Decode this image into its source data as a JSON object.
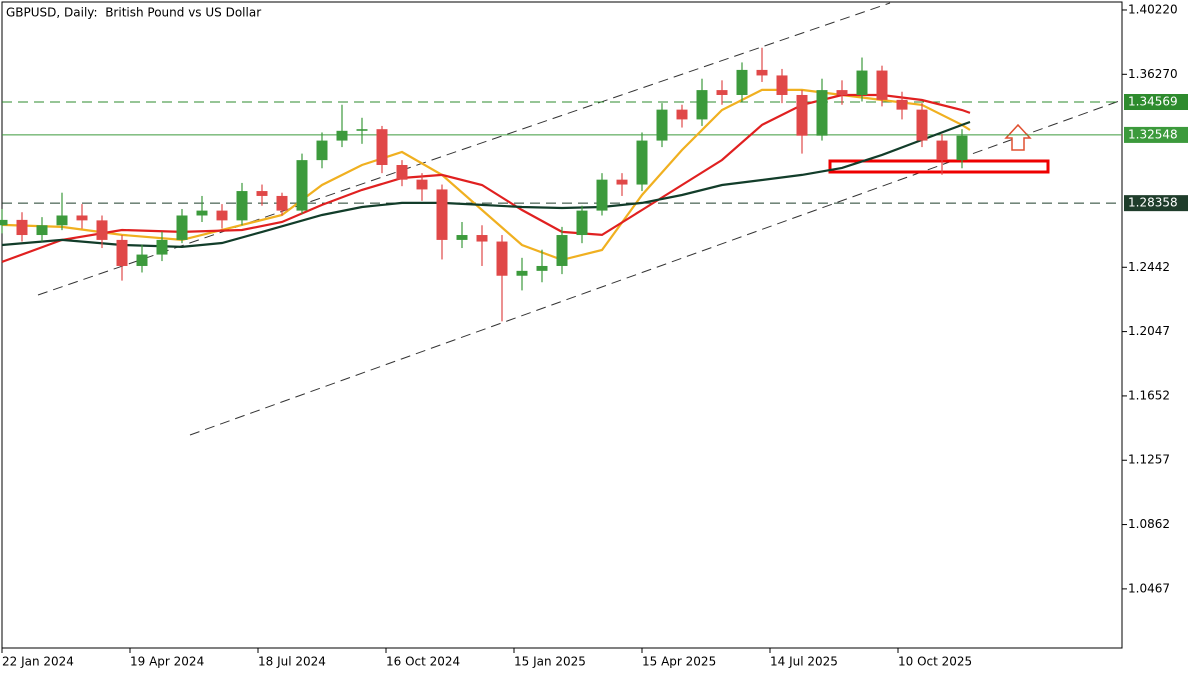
{
  "chart_data": {
    "type": "candlestick",
    "title": "GBPUSD, Daily:  British Pound vs US Dollar",
    "up_color": "#3c9a3c",
    "down_color": "#e04848",
    "x": [
      0,
      10,
      20,
      30,
      40,
      50,
      60,
      70,
      80,
      90,
      100,
      110,
      120,
      130,
      140,
      150,
      160,
      170,
      180,
      190,
      200,
      210,
      220,
      230,
      240,
      250,
      260,
      270,
      280,
      290,
      300,
      310,
      320,
      330,
      340,
      350,
      360,
      370,
      380,
      390,
      400,
      410,
      420,
      430,
      440,
      450,
      460,
      470,
      480
    ],
    "open": [
      1.27,
      1.2733,
      1.264,
      1.27,
      1.276,
      1.273,
      1.261,
      1.245,
      1.252,
      1.261,
      1.276,
      1.279,
      1.273,
      1.291,
      1.288,
      1.279,
      1.31,
      1.322,
      1.328,
      1.329,
      1.307,
      1.298,
      1.292,
      1.261,
      1.264,
      1.26,
      1.239,
      1.242,
      1.245,
      1.264,
      1.279,
      1.298,
      1.295,
      1.322,
      1.341,
      1.335,
      1.353,
      1.35,
      1.3654,
      1.362,
      1.35,
      1.325,
      1.353,
      1.35,
      1.365,
      1.347,
      1.341,
      1.322,
      1.31
    ],
    "high": [
      1.28,
      1.278,
      1.275,
      1.29,
      1.283,
      1.276,
      1.264,
      1.258,
      1.266,
      1.28,
      1.288,
      1.283,
      1.296,
      1.295,
      1.29,
      1.314,
      1.327,
      1.344,
      1.336,
      1.331,
      1.31,
      1.302,
      1.295,
      1.272,
      1.27,
      1.264,
      1.25,
      1.255,
      1.269,
      1.282,
      1.302,
      1.302,
      1.327,
      1.345,
      1.344,
      1.36,
      1.359,
      1.37,
      1.379,
      1.366,
      1.353,
      1.36,
      1.359,
      1.373,
      1.368,
      1.352,
      1.345,
      1.326,
      1.329
    ],
    "low": [
      1.265,
      1.26,
      1.26,
      1.267,
      1.268,
      1.256,
      1.236,
      1.241,
      1.248,
      1.259,
      1.272,
      1.268,
      1.27,
      1.282,
      1.276,
      1.277,
      1.305,
      1.318,
      1.32,
      1.302,
      1.294,
      1.285,
      1.249,
      1.256,
      1.245,
      1.211,
      1.23,
      1.235,
      1.24,
      1.259,
      1.276,
      1.288,
      1.291,
      1.318,
      1.33,
      1.331,
      1.344,
      1.346,
      1.358,
      1.345,
      1.314,
      1.322,
      1.344,
      1.346,
      1.343,
      1.335,
      1.318,
      1.301,
      1.305
    ],
    "close": [
      1.2733,
      1.264,
      1.27,
      1.276,
      1.273,
      1.261,
      1.245,
      1.252,
      1.261,
      1.276,
      1.279,
      1.273,
      1.291,
      1.288,
      1.279,
      1.31,
      1.322,
      1.328,
      1.329,
      1.307,
      1.298,
      1.292,
      1.261,
      1.264,
      1.26,
      1.239,
      1.242,
      1.245,
      1.264,
      1.279,
      1.298,
      1.295,
      1.322,
      1.341,
      1.335,
      1.353,
      1.35,
      1.3654,
      1.362,
      1.35,
      1.325,
      1.353,
      1.35,
      1.365,
      1.347,
      1.341,
      1.322,
      1.31,
      1.325
    ],
    "lines": [
      {
        "color": "#f0b020",
        "x": [
          0,
          30,
          60,
          90,
          120,
          140,
          160,
          180,
          200,
          220,
          240,
          260,
          280,
          300,
          320,
          340,
          360,
          380,
          400,
          420,
          440,
          460,
          480,
          484
        ],
        "values": [
          1.2702,
          1.269,
          1.2641,
          1.261,
          1.2702,
          1.2763,
          1.2947,
          1.307,
          1.315,
          1.3009,
          1.2794,
          1.2579,
          1.2487,
          1.2548,
          1.2886,
          1.3162,
          1.3408,
          1.3531,
          1.3531,
          1.35,
          1.3469,
          1.3439,
          1.3316,
          1.3285
        ]
      },
      {
        "color": "#e02020",
        "x": [
          0,
          30,
          60,
          90,
          120,
          140,
          160,
          180,
          200,
          220,
          240,
          260,
          280,
          300,
          320,
          340,
          360,
          380,
          400,
          420,
          440,
          460,
          480,
          484
        ],
        "values": [
          1.2475,
          1.261,
          1.2671,
          1.2659,
          1.2671,
          1.272,
          1.2825,
          1.2917,
          1.299,
          1.3009,
          1.2947,
          1.2794,
          1.2659,
          1.2641,
          1.2794,
          1.2947,
          1.3101,
          1.3316,
          1.3439,
          1.35,
          1.35,
          1.3469,
          1.3408,
          1.339
        ]
      },
      {
        "color": "#123d2a",
        "x": [
          0,
          30,
          60,
          90,
          110,
          130,
          160,
          180,
          200,
          220,
          240,
          260,
          280,
          300,
          320,
          340,
          360,
          380,
          400,
          420,
          440,
          460,
          480,
          484
        ],
        "values": [
          1.2579,
          1.261,
          1.2579,
          1.2567,
          1.2591,
          1.2659,
          1.2763,
          1.2812,
          1.2837,
          1.2837,
          1.2825,
          1.2812,
          1.2806,
          1.2812,
          1.2837,
          1.2886,
          1.2947,
          1.2978,
          1.3009,
          1.3052,
          1.3132,
          1.3224,
          1.3316,
          1.3334
        ]
      }
    ],
    "levels": [
      {
        "value": 1.34569,
        "color": "#2e8b2e",
        "dash": true
      },
      {
        "value": 1.32548,
        "color": "#3c9a3c",
        "dash": false
      },
      {
        "value": 1.28358,
        "color": "#1f3d2b",
        "dash": true
      }
    ],
    "xlim": [
      0,
      560
    ],
    "ylim": [
      1.0104,
      1.4071
    ],
    "xticks": [
      {
        "value": 0,
        "label": "22 Jan 2024"
      },
      {
        "value": 64,
        "label": "19 Apr 2024"
      },
      {
        "value": 128,
        "label": "18 Jul 2024"
      },
      {
        "value": 192,
        "label": "16 Oct 2024"
      },
      {
        "value": 256,
        "label": "15 Jan 2025"
      },
      {
        "value": 320,
        "label": "15 Apr 2025"
      },
      {
        "value": 384,
        "label": "14 Jul 2025"
      },
      {
        "value": 448,
        "label": "10 Oct 2025"
      }
    ],
    "yticks": [
      {
        "value": 1.4022,
        "label": "1.40220"
      },
      {
        "value": 1.3627,
        "label": "1.36270"
      },
      1.2442,
      1.2047,
      1.1652,
      1.1257,
      1.0862,
      1.0467
    ]
  }
}
